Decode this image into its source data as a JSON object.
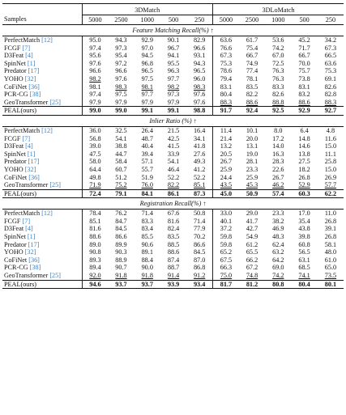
{
  "header": {
    "samples_label": "Samples",
    "groups": [
      "3DMatch",
      "3DLoMatch"
    ],
    "columns": [
      "5000",
      "2500",
      "1000",
      "500",
      "250",
      "5000",
      "2500",
      "1000",
      "500",
      "250"
    ]
  },
  "sections": [
    {
      "title": "Feature Matching Recall(%) ↑",
      "rows": [
        {
          "name": "PerfectMatch",
          "ref": "[12]",
          "values": [
            "95.0",
            "94.3",
            "92.9",
            "90.1",
            "82.9",
            "63.6",
            "61.7",
            "53.6",
            "45.2",
            "34.2"
          ],
          "underline": []
        },
        {
          "name": "FCGF",
          "ref": "[7]",
          "values": [
            "97.4",
            "97.3",
            "97.0",
            "96.7",
            "96.6",
            "76.6",
            "75.4",
            "74.2",
            "71.7",
            "67.3"
          ],
          "underline": []
        },
        {
          "name": "D3Feat",
          "ref": "[4]",
          "values": [
            "95.6",
            "95.4",
            "94.5",
            "94.1",
            "93.1",
            "67.3",
            "66.7",
            "67.0",
            "66.7",
            "66.5"
          ],
          "underline": []
        },
        {
          "name": "SpinNet",
          "ref": "[1]",
          "values": [
            "97.6",
            "97.2",
            "96.8",
            "95.5",
            "94.3",
            "75.3",
            "74.9",
            "72.5",
            "70.0",
            "63.6"
          ],
          "underline": []
        },
        {
          "name": "Predator",
          "ref": "[17]",
          "values": [
            "96.6",
            "96.6",
            "96.5",
            "96.3",
            "96.5",
            "78.6",
            "77.4",
            "76.3",
            "75.7",
            "75.3"
          ],
          "underline": []
        },
        {
          "name": "YOHO",
          "ref": "[32]",
          "values": [
            "98.2",
            "97.6",
            "97.5",
            "97.7",
            "96.0",
            "79.4",
            "78.1",
            "76.3",
            "73.8",
            "69.1"
          ],
          "underline": [
            0
          ]
        },
        {
          "name": "CoFiNet",
          "ref": "[36]",
          "values": [
            "98.1",
            "98.3",
            "98.1",
            "98.2",
            "98.3",
            "83.1",
            "83.5",
            "83.3",
            "83.1",
            "82.6"
          ],
          "underline": [
            1,
            2,
            3,
            4
          ]
        },
        {
          "name": "PCR-CG",
          "ref": "[38]",
          "values": [
            "97.4",
            "97.5",
            "97.7",
            "97.3",
            "97.6",
            "80.4",
            "82.2",
            "82.6",
            "83.2",
            "82.8"
          ],
          "underline": []
        },
        {
          "name": "GeoTransformer",
          "ref": "[25]",
          "values": [
            "97.9",
            "97.9",
            "97.9",
            "97.9",
            "97.6",
            "88.3",
            "88.6",
            "88.8",
            "88.6",
            "88.3"
          ],
          "underline": [
            5,
            6,
            7,
            8,
            9
          ]
        },
        {
          "name": "PEAL(ours)",
          "ref": "",
          "values": [
            "99.0",
            "99.0",
            "99.1",
            "99.1",
            "98.8",
            "91.7",
            "92.4",
            "92.5",
            "92.9",
            "92.7"
          ],
          "bold": true,
          "underline": []
        }
      ]
    },
    {
      "title": "Inlier Ratio (%) ↑",
      "rows": [
        {
          "name": "PerfectMatch",
          "ref": "[12]",
          "values": [
            "36.0",
            "32.5",
            "26.4",
            "21.5",
            "16.4",
            "11.4",
            "10.1",
            "8.0",
            "6.4",
            "4.8"
          ],
          "underline": []
        },
        {
          "name": "FCGF",
          "ref": "[7]",
          "values": [
            "56.8",
            "54.1",
            "48.7",
            "42.5",
            "34.1",
            "21.4",
            "20.0",
            "17.2",
            "14.8",
            "11.6"
          ],
          "underline": []
        },
        {
          "name": "D3Feat",
          "ref": "[4]",
          "values": [
            "39.0",
            "38.8",
            "40.4",
            "41.5",
            "41.8",
            "13.2",
            "13.1",
            "14.0",
            "14.6",
            "15.0"
          ],
          "underline": []
        },
        {
          "name": "SpinNet",
          "ref": "[1]",
          "values": [
            "47.5",
            "44.7",
            "39.4",
            "33.9",
            "27.6",
            "20.5",
            "19.0",
            "16.3",
            "13.8",
            "11.1"
          ],
          "underline": []
        },
        {
          "name": "Predator",
          "ref": "[17]",
          "values": [
            "58.0",
            "58.4",
            "57.1",
            "54.1",
            "49.3",
            "26.7",
            "28.1",
            "28.3",
            "27.5",
            "25.8"
          ],
          "underline": []
        },
        {
          "name": "YOHO",
          "ref": "[32]",
          "values": [
            "64.4",
            "60.7",
            "55.7",
            "46.4",
            "41.2",
            "25.9",
            "23.3",
            "22.6",
            "18.2",
            "15.0"
          ],
          "underline": []
        },
        {
          "name": "CoFiNet",
          "ref": "[36]",
          "values": [
            "49.8",
            "51.2",
            "51.9",
            "52.2",
            "52.2",
            "24.4",
            "25.9",
            "26.7",
            "26.8",
            "26.9"
          ],
          "underline": []
        },
        {
          "name": "GeoTransformer",
          "ref": "[25]",
          "values": [
            "71.9",
            "75.2",
            "76.0",
            "82.2",
            "85.1",
            "43.5",
            "45.3",
            "46.2",
            "52.9",
            "57.7"
          ],
          "underline": [
            0,
            1,
            2,
            3,
            4,
            5,
            6,
            7,
            8,
            9
          ]
        },
        {
          "name": "PEAL(ours)",
          "ref": "",
          "values": [
            "72.4",
            "79.1",
            "84.1",
            "86.1",
            "87.3",
            "45.0",
            "50.9",
            "57.4",
            "60.3",
            "62.2"
          ],
          "bold": true,
          "underline": []
        }
      ]
    },
    {
      "title": "Registration Recall(%) ↑",
      "rows": [
        {
          "name": "PerfectMatch",
          "ref": "[12]",
          "values": [
            "78.4",
            "76.2",
            "71.4",
            "67.6",
            "50.8",
            "33.0",
            "29.0",
            "23.3",
            "17.0",
            "11.0"
          ],
          "underline": []
        },
        {
          "name": "FCGF",
          "ref": "[7]",
          "values": [
            "85.1",
            "84.7",
            "83.3",
            "81.6",
            "71.4",
            "40.1",
            "41.7",
            "38.2",
            "35.4",
            "26.8"
          ],
          "underline": []
        },
        {
          "name": "D3Feat",
          "ref": "[4]",
          "values": [
            "81.6",
            "84.5",
            "83.4",
            "82.4",
            "77.9",
            "37.2",
            "42.7",
            "46.9",
            "43.8",
            "39.1"
          ],
          "underline": []
        },
        {
          "name": "SpinNet",
          "ref": "[1]",
          "values": [
            "88.6",
            "86.6",
            "85.5",
            "83.5",
            "70.2",
            "59.8",
            "54.9",
            "48.3",
            "39.8",
            "26.8"
          ],
          "underline": []
        },
        {
          "name": "Predator",
          "ref": "[17]",
          "values": [
            "89.0",
            "89.9",
            "90.6",
            "88.5",
            "86.6",
            "59.8",
            "61.2",
            "62.4",
            "60.8",
            "58.1"
          ],
          "underline": []
        },
        {
          "name": "YOHO",
          "ref": "[32]",
          "values": [
            "90.8",
            "90.3",
            "89.1",
            "88.6",
            "84.5",
            "65.2",
            "65.5",
            "63.2",
            "56.5",
            "48.0"
          ],
          "underline": []
        },
        {
          "name": "CoFiNet",
          "ref": "[36]",
          "values": [
            "89.3",
            "88.9",
            "88.4",
            "87.4",
            "87.0",
            "67.5",
            "66.2",
            "64.2",
            "63.1",
            "61.0"
          ],
          "underline": []
        },
        {
          "name": "PCR-CG",
          "ref": "[38]",
          "values": [
            "89.4",
            "90.7",
            "90.0",
            "88.7",
            "86.8",
            "66.3",
            "67.2",
            "69.0",
            "68.5",
            "65.0"
          ],
          "underline": []
        },
        {
          "name": "GeoTransformer",
          "ref": "[25]",
          "values": [
            "92.0",
            "91.8",
            "91.8",
            "91.4",
            "91.2",
            "75.0",
            "74.8",
            "74.2",
            "74.1",
            "73.5"
          ],
          "underline": [
            0,
            1,
            2,
            3,
            4,
            5,
            6,
            7,
            8,
            9
          ]
        },
        {
          "name": "PEAL(ours)",
          "ref": "",
          "values": [
            "94.6",
            "93.7",
            "93.7",
            "93.9",
            "93.4",
            "81.7",
            "81.2",
            "80.8",
            "80.4",
            "80.1"
          ],
          "bold": true,
          "underline": []
        }
      ]
    }
  ]
}
